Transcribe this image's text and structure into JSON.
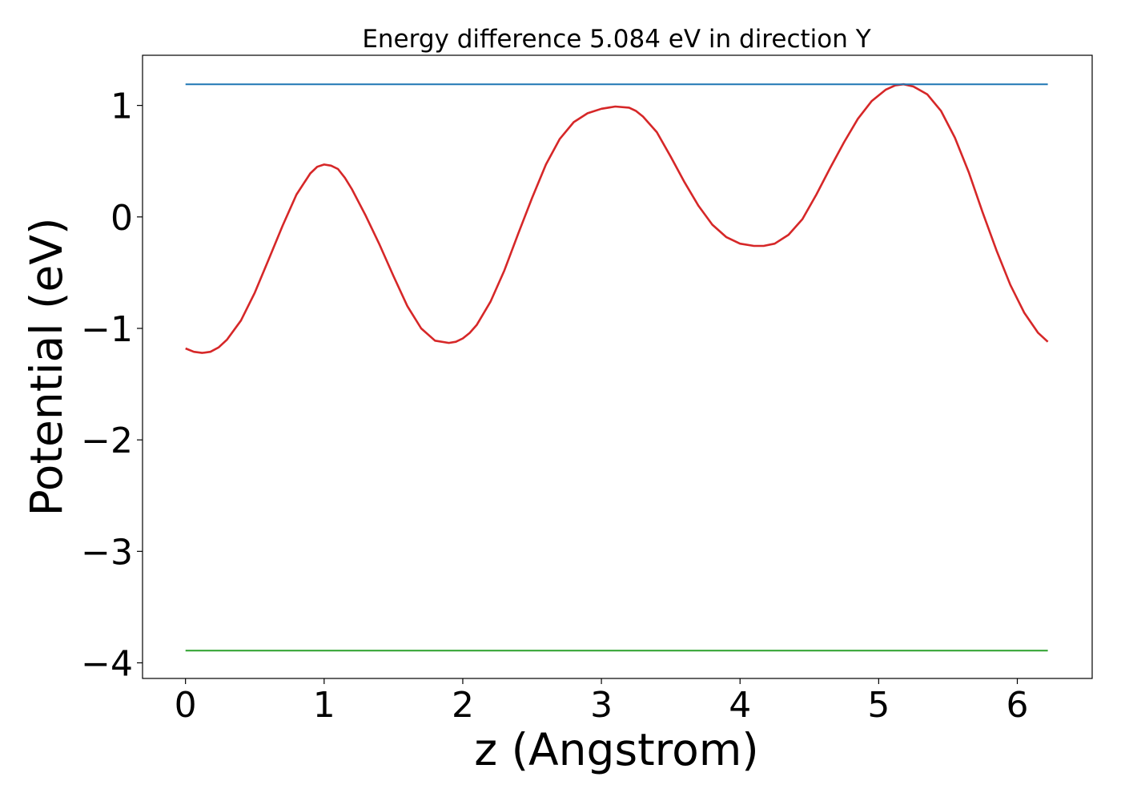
{
  "chart_data": {
    "type": "line",
    "title": "Energy difference 5.084 eV in direction Y",
    "xlabel": "z (Angstrom)",
    "ylabel": "Potential (eV)",
    "xlim": [
      -0.31,
      6.54
    ],
    "ylim": [
      -4.14,
      1.45
    ],
    "xticks": [
      0,
      1,
      2,
      3,
      4,
      5,
      6
    ],
    "xtick_labels": [
      "0",
      "1",
      "2",
      "3",
      "4",
      "5",
      "6"
    ],
    "yticks": [
      1,
      0,
      -1,
      -2,
      -3,
      -4
    ],
    "ytick_labels": [
      "1",
      "0",
      "−1",
      "−2",
      "−3",
      "−4"
    ],
    "grid": false,
    "legend": "none",
    "series": [
      {
        "color": "#d62728",
        "x": [
          0.0,
          0.06,
          0.12,
          0.18,
          0.24,
          0.3,
          0.4,
          0.5,
          0.6,
          0.7,
          0.8,
          0.9,
          0.95,
          1.0,
          1.05,
          1.1,
          1.15,
          1.2,
          1.3,
          1.4,
          1.5,
          1.6,
          1.7,
          1.8,
          1.9,
          1.95,
          2.0,
          2.05,
          2.1,
          2.2,
          2.3,
          2.4,
          2.5,
          2.6,
          2.7,
          2.8,
          2.9,
          3.0,
          3.1,
          3.2,
          3.25,
          3.3,
          3.4,
          3.5,
          3.6,
          3.7,
          3.8,
          3.9,
          4.0,
          4.1,
          4.17,
          4.25,
          4.35,
          4.45,
          4.55,
          4.65,
          4.75,
          4.85,
          4.95,
          5.05,
          5.12,
          5.18,
          5.25,
          5.35,
          5.45,
          5.55,
          5.65,
          5.75,
          5.85,
          5.95,
          6.05,
          6.15,
          6.22
        ],
        "y": [
          -1.18,
          -1.21,
          -1.22,
          -1.21,
          -1.17,
          -1.1,
          -0.93,
          -0.68,
          -0.38,
          -0.08,
          0.2,
          0.39,
          0.45,
          0.47,
          0.46,
          0.43,
          0.35,
          0.25,
          0.01,
          -0.25,
          -0.53,
          -0.8,
          -1.0,
          -1.11,
          -1.13,
          -1.12,
          -1.09,
          -1.04,
          -0.97,
          -0.76,
          -0.48,
          -0.15,
          0.17,
          0.47,
          0.7,
          0.85,
          0.93,
          0.97,
          0.99,
          0.98,
          0.95,
          0.9,
          0.76,
          0.54,
          0.31,
          0.1,
          -0.07,
          -0.18,
          -0.24,
          -0.26,
          -0.26,
          -0.24,
          -0.16,
          -0.02,
          0.2,
          0.44,
          0.67,
          0.88,
          1.04,
          1.14,
          1.18,
          1.19,
          1.17,
          1.1,
          0.95,
          0.71,
          0.4,
          0.04,
          -0.3,
          -0.61,
          -0.86,
          -1.04,
          -1.12
        ]
      },
      {
        "color": "#1f77b4",
        "x": [
          0.0,
          6.22
        ],
        "y": [
          1.19,
          1.19
        ]
      },
      {
        "color": "#2ca02c",
        "x": [
          0.0,
          6.22
        ],
        "y": [
          -3.89,
          -3.89
        ]
      }
    ]
  }
}
